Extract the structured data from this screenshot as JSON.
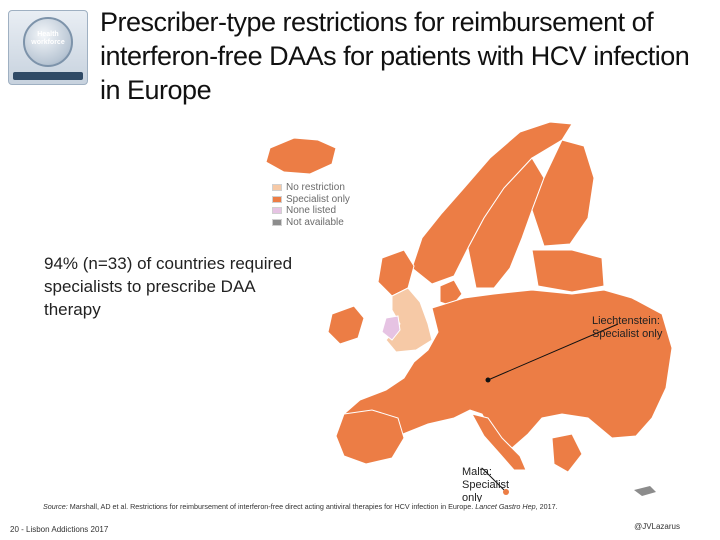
{
  "logo": {
    "text": "Health workforce"
  },
  "title": "Prescriber-type restrictions for reimbursement of interferon-free DAAs for patients with HCV infection in Europe",
  "map": {
    "legend": [
      {
        "label": "No restriction",
        "color": "#f6c9a6"
      },
      {
        "label": "Specialist only",
        "color": "#ec7d45"
      },
      {
        "label": "None listed",
        "color": "#e6c3e3"
      },
      {
        "label": "Not available",
        "color": "#8c8c8c"
      }
    ],
    "callouts": {
      "liechtenstein": "Liechtenstein: Specialist only",
      "malta": "Malta: Specialist only"
    }
  },
  "highlight": "94% (n=33) of countries required specialists to prescribe DAA therapy",
  "source": {
    "prefix": "Source:",
    "text": " Marshall, AD et al. Restrictions for reimbursement of interferon-free direct acting antiviral therapies for HCV infection in Europe. ",
    "journal": "Lancet Gastro Hep",
    "year": ", 2017."
  },
  "footer": {
    "left": "20 - Lisbon Addictions 2017",
    "right": "@JVLazarus"
  }
}
